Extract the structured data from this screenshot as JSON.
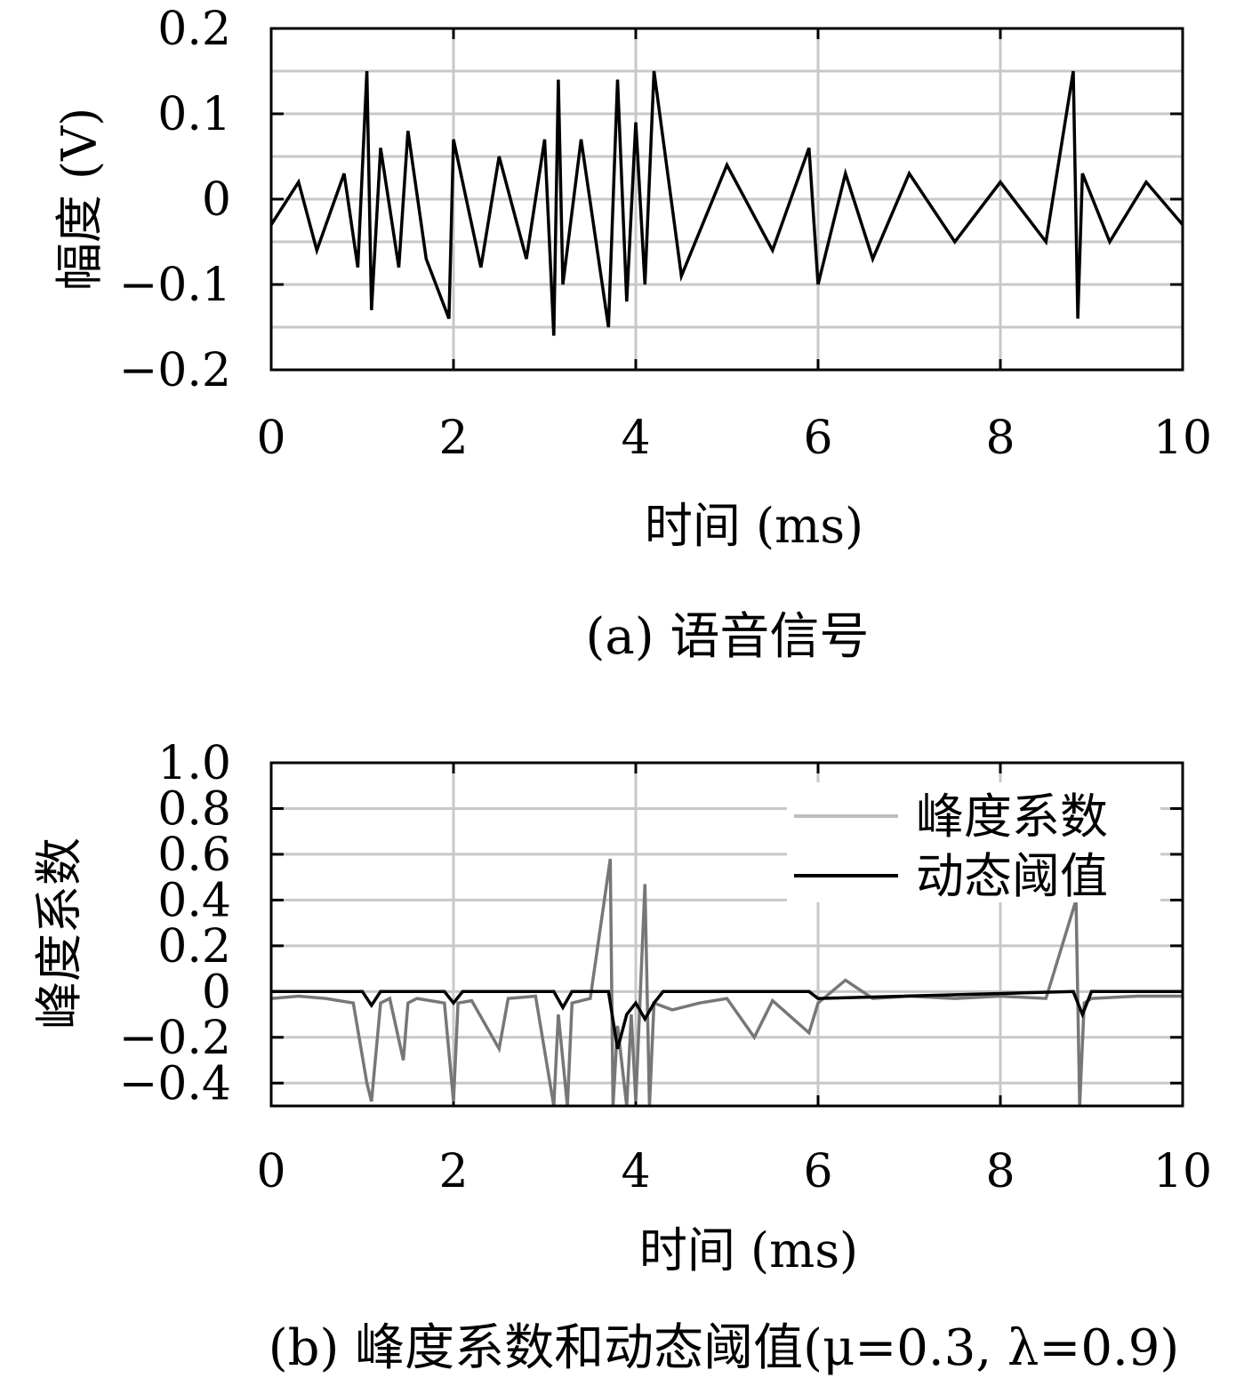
{
  "chart_data": [
    {
      "type": "line",
      "caption": "(a) 语音信号",
      "xlabel": "时间 (ms)",
      "ylabel": "幅度 (V)",
      "xlim": [
        0,
        10
      ],
      "ylim": [
        -0.2,
        0.2
      ],
      "xticks": [
        "0",
        "2",
        "4",
        "6",
        "8",
        "10"
      ],
      "yticks": [
        "0.2",
        "0.1",
        "0",
        "−0.1",
        "−0.2"
      ],
      "grid": true,
      "line_color": "#000000",
      "series": [
        {
          "x": [
            0,
            0.3,
            0.5,
            0.8,
            0.95,
            1.05,
            1.1,
            1.2,
            1.4,
            1.5,
            1.7,
            1.95,
            2.0,
            2.3,
            2.5,
            2.8,
            3.0,
            3.1,
            3.15,
            3.2,
            3.4,
            3.7,
            3.8,
            3.9,
            4.0,
            4.1,
            4.2,
            4.5,
            5.0,
            5.5,
            5.9,
            6.0,
            6.3,
            6.6,
            7.0,
            7.5,
            8.0,
            8.5,
            8.8,
            8.85,
            8.9,
            9.2,
            9.6,
            10.0
          ],
          "y": [
            -0.03,
            0.02,
            -0.06,
            0.03,
            -0.08,
            0.15,
            -0.13,
            0.06,
            -0.08,
            0.08,
            -0.07,
            -0.14,
            0.07,
            -0.08,
            0.05,
            -0.07,
            0.07,
            -0.16,
            0.14,
            -0.1,
            0.07,
            -0.15,
            0.14,
            -0.12,
            0.09,
            -0.1,
            0.15,
            -0.09,
            0.04,
            -0.06,
            0.06,
            -0.1,
            0.03,
            -0.07,
            0.03,
            -0.05,
            0.02,
            -0.05,
            0.15,
            -0.14,
            0.03,
            -0.05,
            0.02,
            -0.03
          ]
        }
      ]
    },
    {
      "type": "line",
      "caption": "(b) 峰度系数和动态阈值(μ=0.3, λ=0.9)",
      "xlabel": "时间 (ms)",
      "ylabel": "峰度系数",
      "xlim": [
        0,
        10
      ],
      "ylim": [
        -0.5,
        1.0
      ],
      "xticks": [
        "0",
        "2",
        "4",
        "6",
        "8",
        "10"
      ],
      "yticks": [
        "1.0",
        "0.8",
        "0.6",
        "0.4",
        "0.2",
        "0",
        "−0.2",
        "−0.4"
      ],
      "grid": true,
      "legend_position": "top-right",
      "series": [
        {
          "name": "峰度系数",
          "color": "#777777",
          "x": [
            0,
            0.3,
            0.6,
            0.9,
            1.05,
            1.1,
            1.2,
            1.3,
            1.45,
            1.5,
            1.6,
            1.9,
            2.0,
            2.05,
            2.2,
            2.5,
            2.6,
            2.9,
            3.1,
            3.15,
            3.25,
            3.3,
            3.5,
            3.72,
            3.75,
            3.8,
            3.9,
            3.95,
            4.0,
            4.1,
            4.15,
            4.2,
            4.4,
            4.7,
            5.0,
            5.3,
            5.5,
            5.9,
            6.0,
            6.3,
            6.6,
            7.0,
            7.5,
            8.0,
            8.5,
            8.83,
            8.87,
            8.92,
            9.0,
            9.5,
            10.0
          ],
          "y": [
            -0.03,
            -0.02,
            -0.03,
            -0.05,
            -0.4,
            -0.48,
            -0.05,
            -0.03,
            -0.3,
            -0.05,
            -0.03,
            -0.05,
            -0.48,
            -0.05,
            -0.04,
            -0.25,
            -0.03,
            -0.02,
            -0.5,
            -0.1,
            -0.5,
            -0.05,
            -0.03,
            0.58,
            -0.5,
            -0.15,
            -0.5,
            -0.1,
            -0.48,
            0.47,
            -0.5,
            -0.05,
            -0.08,
            -0.05,
            -0.03,
            -0.2,
            -0.04,
            -0.18,
            -0.05,
            0.05,
            -0.03,
            -0.02,
            -0.03,
            -0.02,
            -0.03,
            0.4,
            -0.5,
            -0.05,
            -0.03,
            -0.02,
            -0.02
          ]
        },
        {
          "name": "动态阈值",
          "color": "#000000",
          "x": [
            0,
            1.0,
            1.1,
            1.2,
            1.9,
            2.0,
            2.1,
            3.1,
            3.2,
            3.3,
            3.7,
            3.8,
            3.9,
            4.0,
            4.1,
            4.2,
            4.3,
            5.9,
            6.0,
            8.8,
            8.9,
            9.0,
            10.0
          ],
          "y": [
            0.0,
            0.0,
            -0.06,
            0.0,
            0.0,
            -0.05,
            0.0,
            0.0,
            -0.07,
            0.0,
            0.0,
            -0.25,
            -0.1,
            -0.05,
            -0.12,
            -0.05,
            0.0,
            0.0,
            -0.03,
            0.0,
            -0.1,
            0.0,
            0.0
          ]
        }
      ]
    }
  ]
}
